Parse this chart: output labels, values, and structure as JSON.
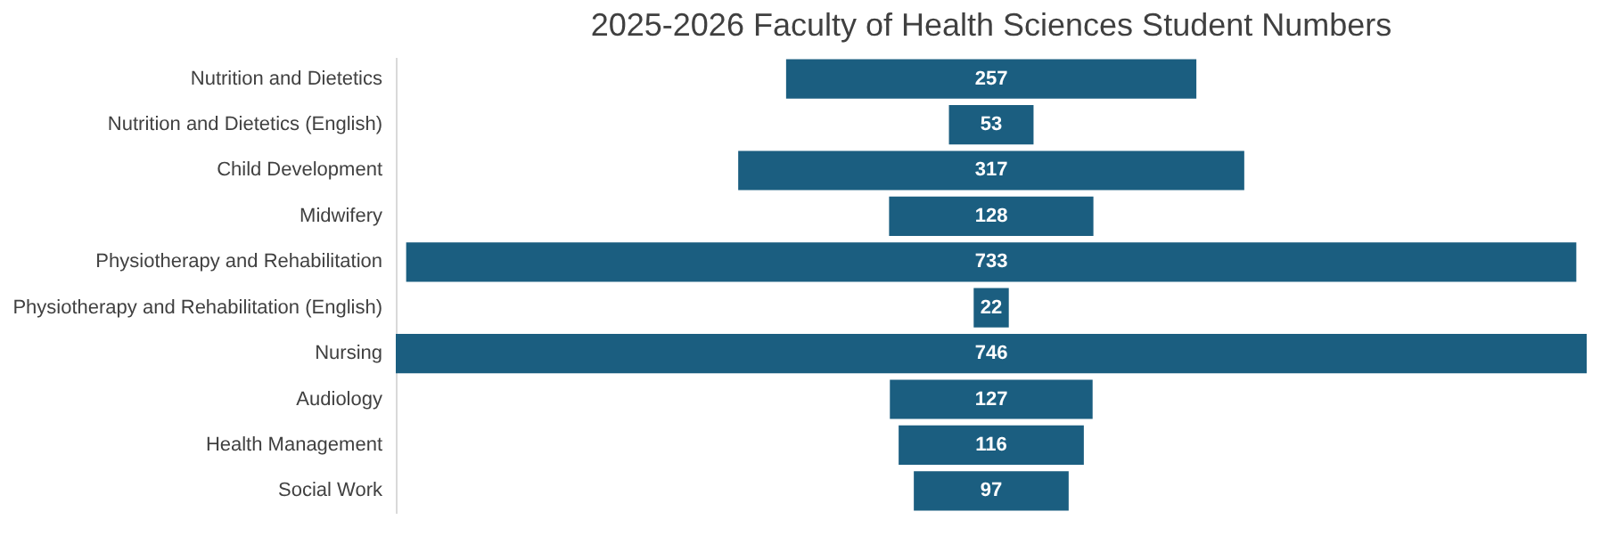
{
  "chart_data": {
    "type": "other",
    "title": "2025-2026 Faculty of Health Sciences Student Numbers",
    "categories": [
      "Nutrition and Dietetics",
      "Nutrition and Dietetics (English)",
      "Child Development",
      "Midwifery",
      "Physiotherapy and Rehabilitation",
      "Physiotherapy and Rehabilitation (English)",
      "Nursing",
      "Audiology",
      "Health Management",
      "Social Work"
    ],
    "values": [
      257,
      53,
      317,
      128,
      733,
      22,
      746,
      127,
      116,
      97
    ],
    "color": "#1b5e80",
    "data_labels": true
  }
}
